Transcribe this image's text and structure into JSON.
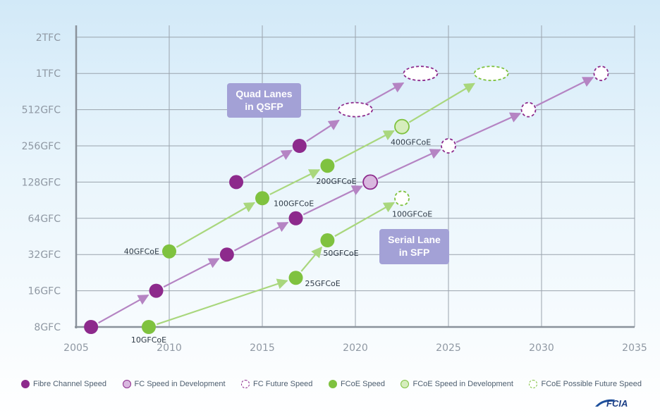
{
  "chart_data": {
    "type": "scatter",
    "y_scale": "log2",
    "y_ticks": [
      "8GFC",
      "16GFC",
      "32GFC",
      "64GFC",
      "128GFC",
      "256GFC",
      "512GFC",
      "1TFC",
      "2TFC"
    ],
    "x_ticks": [
      "2005",
      "2010",
      "2015",
      "2020",
      "2025",
      "2030",
      "2035"
    ],
    "xlim": [
      2005,
      2035
    ],
    "grid": true,
    "legend_position": "bottom",
    "series": [
      {
        "name": "Fibre Channel Speed",
        "style": "fc-solid",
        "points": [
          {
            "x": 2005.8,
            "y": "8GFC"
          },
          {
            "x": 2009.3,
            "y": "16GFC"
          },
          {
            "x": 2013.1,
            "y": "32GFC"
          },
          {
            "x": 2016.8,
            "y": "64GFC"
          },
          {
            "x": 2013.6,
            "y": "128GFC"
          },
          {
            "x": 2017.0,
            "y": "256GFC"
          }
        ]
      },
      {
        "name": "FC Speed in Development",
        "style": "fc-dev",
        "points": [
          {
            "x": 2020.8,
            "y": "128GFC"
          }
        ]
      },
      {
        "name": "FC Future Speed",
        "style": "fc-future",
        "points": [
          {
            "x": 2025.0,
            "y": "256GFC"
          },
          {
            "x": 2029.3,
            "y": "512GFC"
          },
          {
            "x": 2033.2,
            "y": "1TFC"
          },
          {
            "x": 2020.0,
            "y": "512GFC"
          },
          {
            "x": 2023.5,
            "y": "1TFC"
          }
        ]
      },
      {
        "name": "FCoE Speed",
        "style": "fcoe-solid",
        "points": [
          {
            "x": 2008.9,
            "y": "10GFCoE"
          },
          {
            "x": 2010.0,
            "y": "40GFCoE"
          },
          {
            "x": 2016.8,
            "y": "25GFCoE"
          },
          {
            "x": 2018.5,
            "y": "50GFCoE"
          },
          {
            "x": 2015.0,
            "y": "100GFCoE"
          },
          {
            "x": 2018.5,
            "y": "200GFCoE"
          }
        ]
      },
      {
        "name": "FCoE Speed in Development",
        "style": "fcoe-dev",
        "points": [
          {
            "x": 2022.5,
            "y": "400GFCoE"
          }
        ]
      },
      {
        "name": "FCoE Possible Future Speed",
        "style": "fcoe-future",
        "points": [
          {
            "x": 2022.5,
            "y": "100GFCoE"
          },
          {
            "x": 2027.3,
            "y": "1TFC"
          }
        ]
      }
    ],
    "callouts": [
      {
        "lines": [
          "Quad Lanes",
          "in QSFP"
        ]
      },
      {
        "lines": [
          "Serial Lane",
          "in SFP"
        ]
      }
    ],
    "data_labels": [
      "10GFCoE",
      "40GFCoE",
      "25GFCoE",
      "50GFCoE",
      "100GFCoE",
      "200GFCoE",
      "400GFCoE",
      "100GFCoE"
    ],
    "colors": {
      "fc": "#8d2a8c",
      "fc_light": "#b584c3",
      "fc_dev_fill": "#d9b8df",
      "fcoe": "#7fc23f",
      "fcoe_light": "#a9d77d",
      "fcoe_dev_fill": "#d6edbd",
      "grid": "#9aa3ad",
      "axis": "#8a929b",
      "callout": "#a3a1d6"
    }
  },
  "legend": [
    {
      "label": "Fibre Channel Speed",
      "style": "fc-solid"
    },
    {
      "label": "FC Speed in Development",
      "style": "fc-dev"
    },
    {
      "label": "FC Future Speed",
      "style": "fc-future"
    },
    {
      "label": "FCoE Speed",
      "style": "fcoe-solid"
    },
    {
      "label": "FCoE Speed in Development",
      "style": "fcoe-dev"
    },
    {
      "label": "FCoE Possible Future Speed",
      "style": "fcoe-future"
    }
  ],
  "logo_text": "FCIA"
}
